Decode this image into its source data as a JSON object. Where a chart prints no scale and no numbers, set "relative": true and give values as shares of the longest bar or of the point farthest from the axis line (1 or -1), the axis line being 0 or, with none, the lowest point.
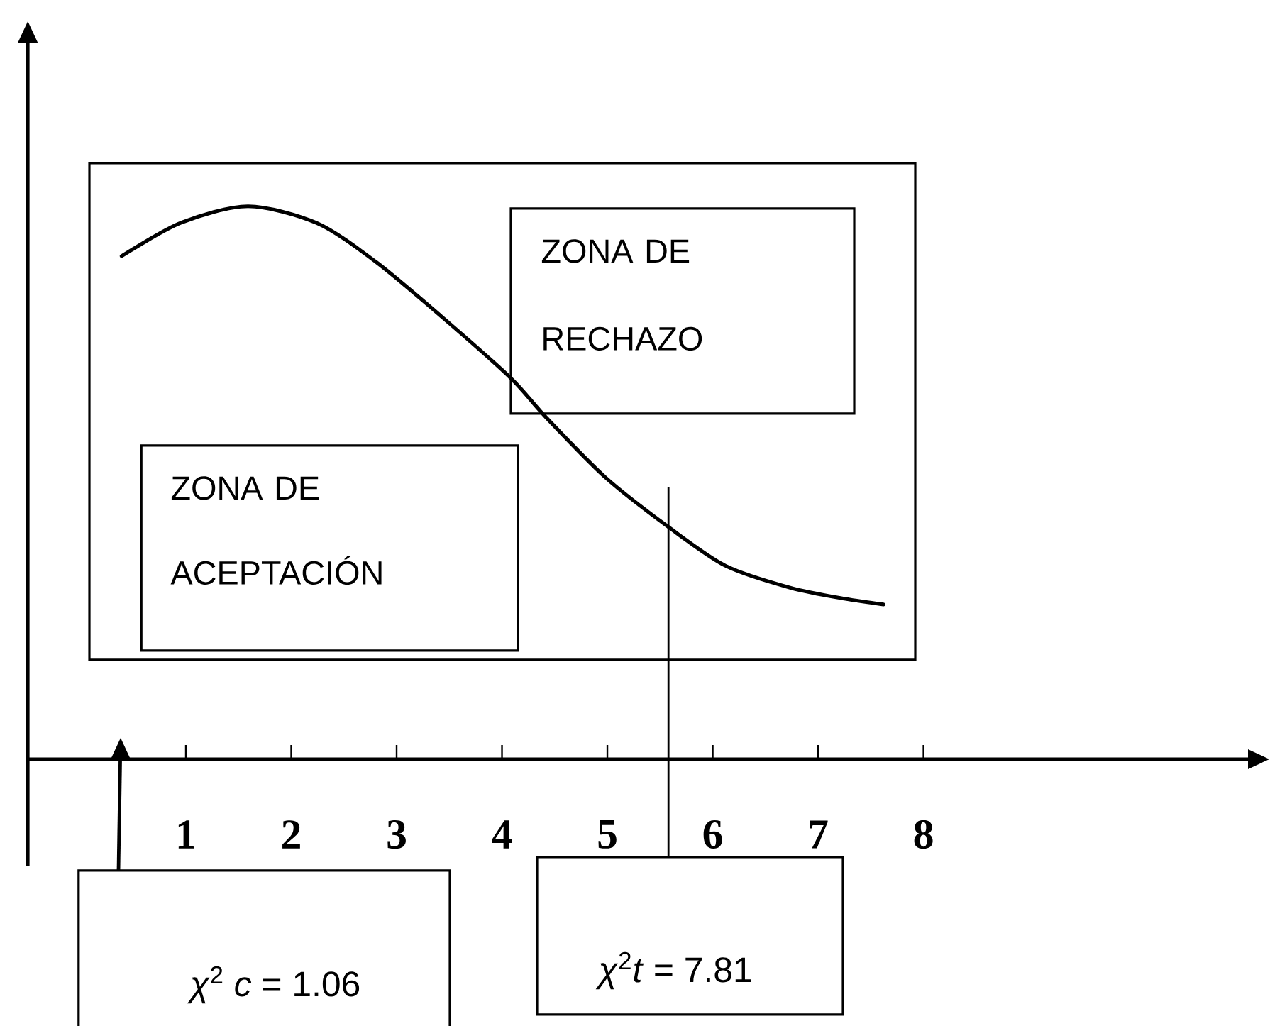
{
  "chart_data": {
    "type": "line",
    "relative": true,
    "x": [
      0.39,
      0.95,
      1.59,
      2.24,
      2.8,
      3.43,
      4.08,
      4.41,
      4.98,
      5.58,
      6.12,
      6.74,
      7.26,
      7.62
    ],
    "values": [
      0.91,
      0.97,
      1.0,
      0.97,
      0.9,
      0.8,
      0.69,
      0.62,
      0.51,
      0.42,
      0.35,
      0.31,
      0.29,
      0.28
    ],
    "color": "#000000",
    "xlim": [
      -0.5,
      11.08
    ],
    "xticks": [
      1,
      2,
      3,
      4,
      5,
      6,
      7,
      8
    ],
    "ref_lines": [
      {
        "axis": "x",
        "value": 5.58
      }
    ],
    "annotations": [
      "ZONA DE RECHAZO",
      "ZONA DE ACEPTACIÓN",
      "*χ*$^{2}$ *c* = 1.06",
      "*χ*$^{2}$*t* = 7.81"
    ]
  }
}
